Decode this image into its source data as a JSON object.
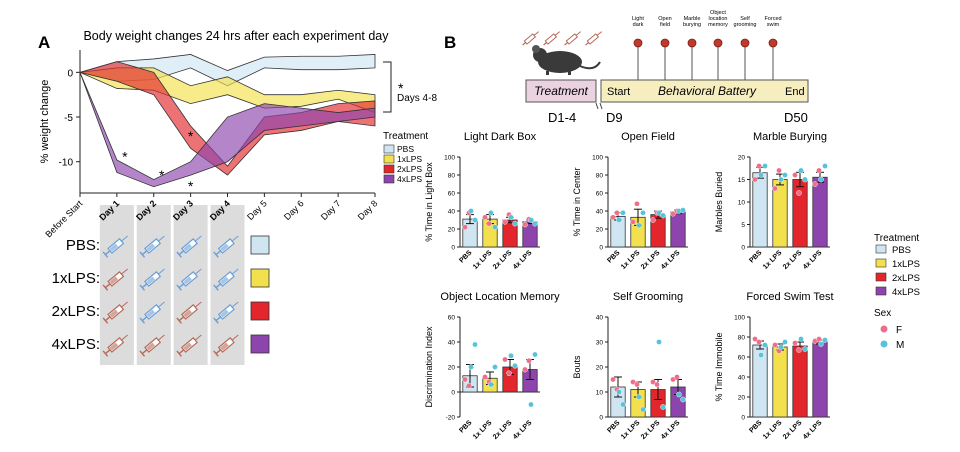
{
  "colors": {
    "PBS": "#cfe6f2",
    "1xLPS": "#f2e04c",
    "2xLPS": "#e3262b",
    "4xLPS": "#8e44ad",
    "female": "#ef6f8a",
    "male": "#57c3d8",
    "shade": "#dcdcdc",
    "treatment_box": "#ead2e0",
    "battery_box": "#f7eec0",
    "syringe_saline": "#6b9ed6",
    "syringe_lps": "#b56a5a"
  },
  "panel_a": {
    "letter": "A",
    "legend_title": "Treatment",
    "days4_8": "Days 4-8",
    "row_labels": [
      "PBS:",
      "1xLPS:",
      "2xLPS:",
      "4xLPS:"
    ],
    "injection_grid": [
      [
        "saline",
        "saline",
        "saline",
        "saline"
      ],
      [
        "lps",
        "saline",
        "saline",
        "saline"
      ],
      [
        "lps",
        "saline",
        "lps",
        "saline"
      ],
      [
        "lps",
        "lps",
        "lps",
        "lps"
      ]
    ]
  },
  "panel_b": {
    "letter": "B",
    "timeline": {
      "treatment_label": "Treatment",
      "battery_label": "Behavioral Battery",
      "start": "Start",
      "end": "End",
      "d1_4": "D1-4",
      "d9": "D9",
      "d50": "D50",
      "tests": [
        "Light dark",
        "Open field",
        "Marble burying",
        "Object location memory",
        "Self grooming",
        "Forced swim"
      ]
    },
    "legend_treatment_title": "Treatment",
    "legend_groups": [
      "PBS",
      "1xLPS",
      "2xLPS",
      "4xLPS"
    ],
    "legend_sex_title": "Sex",
    "legend_sex": [
      "F",
      "M"
    ]
  },
  "chart_data": [
    {
      "type": "area",
      "title": "Body weight changes 24 hrs after each experiment day",
      "ylabel": "% weight change",
      "categories": [
        "Before Start",
        "Day 1",
        "Day 2",
        "Day 3",
        "Day 4",
        "Day 5",
        "Day 6",
        "Day 7",
        "Day 8"
      ],
      "bold_categories": [
        "Day 1",
        "Day 2",
        "Day 3",
        "Day 4"
      ],
      "ylim": [
        -13.5,
        2.5
      ],
      "yticks": [
        0,
        -5,
        -10
      ],
      "series": [
        {
          "name": "PBS",
          "lower": [
            0,
            -1,
            -0.8,
            0.5,
            -1.5,
            0.5,
            0.3,
            0.3,
            0.5
          ],
          "upper": [
            0,
            1.2,
            1.5,
            2,
            0.2,
            1.7,
            1.8,
            1.8,
            2
          ]
        },
        {
          "name": "1xLPS",
          "lower": [
            0,
            -1.8,
            -2,
            -3.5,
            -2.5,
            -4,
            -3.8,
            -3,
            -4.5
          ],
          "upper": [
            0,
            0.5,
            0.5,
            -1.5,
            -0.5,
            -2.5,
            -2.5,
            -2,
            -2.5
          ]
        },
        {
          "name": "2xLPS",
          "lower": [
            0,
            -1,
            -2.5,
            -8.5,
            -11.5,
            -7,
            -6.5,
            -5.5,
            -6
          ],
          "upper": [
            0,
            1.2,
            0,
            -6,
            -10.5,
            -5,
            -4.5,
            -3.5,
            -3.2
          ]
        },
        {
          "name": "4xLPS",
          "lower": [
            0,
            -11.2,
            -12.8,
            -11.5,
            -10,
            -6.5,
            -6,
            -5.5,
            -5
          ],
          "upper": [
            0,
            -9.8,
            -12,
            -10,
            -5,
            -3.5,
            -4,
            -4.5,
            -4
          ]
        }
      ],
      "annotations": [
        {
          "text": "*",
          "x": "Day 1",
          "y": -9.3
        },
        {
          "text": "*",
          "x": "Day 2",
          "y": -11.4
        },
        {
          "text": "*",
          "x": "Day 3",
          "y": -7
        },
        {
          "text": "*",
          "x": "Day 3",
          "y": -12.6
        }
      ]
    },
    {
      "type": "bar",
      "title": "Light Dark Box",
      "ylabel": "% Time in Light Box",
      "categories": [
        "PBS",
        "1x LPS",
        "2x LPS",
        "4x LPS"
      ],
      "ylim": [
        0,
        100
      ],
      "yticks": [
        0,
        20,
        40,
        60,
        80,
        100
      ],
      "values": [
        31,
        31,
        30,
        28
      ],
      "errors": [
        5,
        5,
        3,
        2
      ],
      "points": {
        "F": [
          [
            22,
            38
          ],
          [
            33,
            26
          ],
          [
            28,
            36
          ],
          [
            25,
            31
          ]
        ],
        "M": [
          [
            40,
            30
          ],
          [
            38,
            22
          ],
          [
            33,
            26
          ],
          [
            30,
            26
          ]
        ]
      }
    },
    {
      "type": "bar",
      "title": "Open Field",
      "ylabel": "% Time in Center",
      "categories": [
        "PBS",
        "1x LPS",
        "2x LPS",
        "4x LPS"
      ],
      "ylim": [
        0,
        100
      ],
      "yticks": [
        0,
        20,
        40,
        60,
        80,
        100
      ],
      "values": [
        34,
        33,
        36,
        39
      ],
      "errors": [
        4,
        9,
        4,
        2
      ],
      "points": {
        "F": [
          [
            33,
            38
          ],
          [
            28,
            48
          ],
          [
            30,
            38
          ],
          [
            37,
            40
          ]
        ],
        "M": [
          [
            30,
            38
          ],
          [
            24,
            38
          ],
          [
            38,
            35
          ],
          [
            40,
            41
          ]
        ]
      }
    },
    {
      "type": "bar",
      "title": "Marble Burying",
      "ylabel": "Marbles Buried",
      "categories": [
        "PBS",
        "1x LPS",
        "2x LPS",
        "4x LPS"
      ],
      "ylim": [
        0,
        20
      ],
      "yticks": [
        0,
        5,
        10,
        15,
        20
      ],
      "values": [
        16.5,
        15,
        15,
        15.5
      ],
      "errors": [
        1.2,
        1.2,
        1.6,
        1.1
      ],
      "points": {
        "F": [
          [
            15,
            18
          ],
          [
            13,
            17
          ],
          [
            16,
            12
          ],
          [
            14,
            17
          ]
        ],
        "M": [
          [
            16,
            18
          ],
          [
            15,
            16
          ],
          [
            17,
            15
          ],
          [
            15,
            18
          ]
        ]
      }
    },
    {
      "type": "bar",
      "title": "Object Location Memory",
      "ylabel": "Discrimination Index",
      "categories": [
        "PBS",
        "1x LPS",
        "2x LPS",
        "4x LPS"
      ],
      "ylim": [
        -20,
        60
      ],
      "yticks": [
        -20,
        0,
        20,
        40,
        60
      ],
      "values": [
        13,
        11,
        20,
        18
      ],
      "errors": [
        9,
        5,
        6,
        8
      ],
      "points": {
        "F": [
          [
            10,
            5
          ],
          [
            12,
            8
          ],
          [
            26,
            15
          ],
          [
            18,
            25
          ]
        ],
        "M": [
          [
            20,
            38
          ],
          [
            6,
            20
          ],
          [
            29,
            21
          ],
          [
            -10,
            30
          ]
        ]
      }
    },
    {
      "type": "bar",
      "title": "Self Grooming",
      "ylabel": "Bouts",
      "categories": [
        "PBS",
        "1x LPS",
        "2x LPS",
        "4x LPS"
      ],
      "ylim": [
        0,
        40
      ],
      "yticks": [
        0,
        10,
        20,
        30,
        40
      ],
      "values": [
        12,
        11,
        11,
        12
      ],
      "errors": [
        4,
        3,
        4,
        3
      ],
      "points": {
        "F": [
          [
            15,
            11
          ],
          [
            14,
            13
          ],
          [
            14,
            13
          ],
          [
            15,
            16
          ]
        ],
        "M": [
          [
            10,
            5
          ],
          [
            8,
            3
          ],
          [
            30,
            4
          ],
          [
            9,
            7
          ]
        ]
      }
    },
    {
      "type": "bar",
      "title": "Forced Swim Test",
      "ylabel": "% Time Immobile",
      "categories": [
        "PBS",
        "1x LPS",
        "2x LPS",
        "4x LPS"
      ],
      "ylim": [
        0,
        100
      ],
      "yticks": [
        0,
        20,
        40,
        60,
        80,
        100
      ],
      "values": [
        72,
        70,
        71,
        75
      ],
      "errors": [
        4,
        3,
        4,
        2
      ],
      "points": {
        "F": [
          [
            78,
            75
          ],
          [
            72,
            66
          ],
          [
            74,
            67
          ],
          [
            76,
            78
          ]
        ],
        "M": [
          [
            62,
            72
          ],
          [
            70,
            75
          ],
          [
            78,
            68
          ],
          [
            73,
            77
          ]
        ]
      }
    }
  ]
}
